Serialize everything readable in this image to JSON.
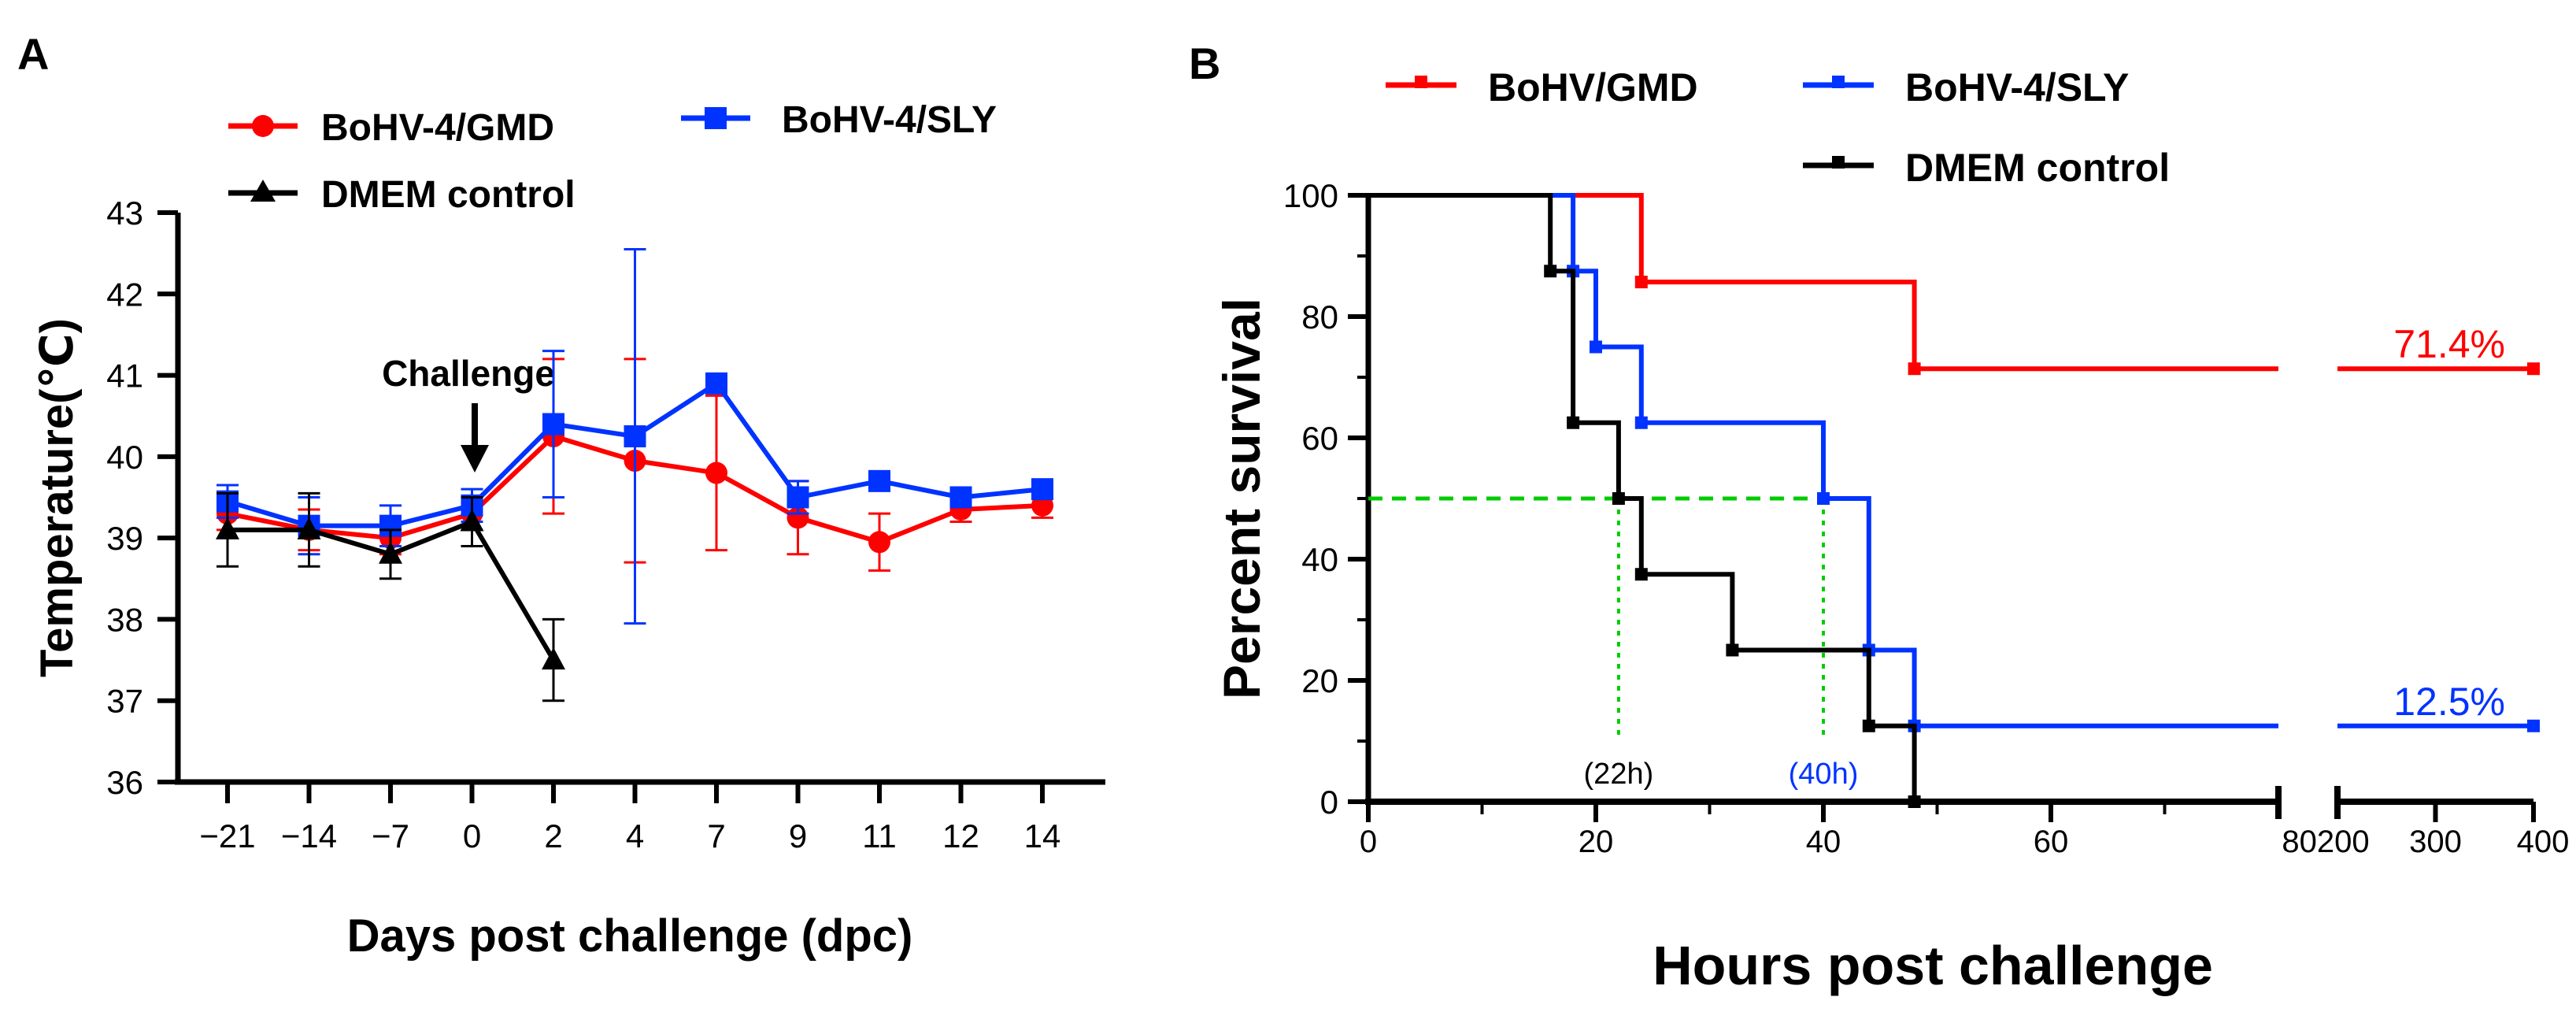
{
  "chart_data": [
    {
      "panel_label": "A",
      "type": "line",
      "title": "",
      "xlabel": "Days post challenge (dpc)",
      "ylabel": "Temperature(℃)",
      "ylim": [
        36,
        43
      ],
      "yticks": [
        "36",
        "37",
        "38",
        "39",
        "40",
        "41",
        "42",
        "43"
      ],
      "categories": [
        "−21",
        "−14",
        "−7",
        "0",
        "2",
        "4",
        "7",
        "9",
        "11",
        "12",
        "14"
      ],
      "annotation": "Challenge",
      "legend_position": "top",
      "series": [
        {
          "name": "BoHV-4/GMD",
          "color": "#ff0000",
          "marker": "circle",
          "values": [
            39.3,
            39.1,
            39.0,
            39.3,
            40.25,
            39.95,
            39.8,
            39.25,
            38.95,
            39.35,
            39.4
          ],
          "err": [
            0.2,
            0.25,
            0.2,
            0.2,
            0.95,
            1.25,
            0.95,
            0.45,
            0.35,
            0.15,
            0.15
          ]
        },
        {
          "name": "BoHV-4/SLY",
          "color": "#0033ff",
          "marker": "square",
          "values": [
            39.45,
            39.15,
            39.15,
            39.4,
            40.4,
            40.25,
            40.9,
            39.5,
            39.7,
            39.5,
            39.6
          ],
          "err": [
            0.2,
            0.35,
            0.25,
            0.2,
            0.9,
            2.3,
            0.1,
            0.2,
            0.1,
            0.1,
            0.1
          ]
        },
        {
          "name": "DMEM control",
          "color": "#000000",
          "marker": "triangle",
          "values": [
            39.1,
            39.1,
            38.8,
            39.2,
            37.5,
            null,
            null,
            null,
            null,
            null,
            null
          ],
          "err": [
            0.45,
            0.45,
            0.3,
            0.3,
            0.5,
            null,
            null,
            null,
            null,
            null,
            null
          ]
        }
      ]
    },
    {
      "panel_label": "B",
      "type": "line",
      "subtype": "kaplan-meier survival",
      "title": "",
      "xlabel": "Hours post challenge",
      "ylabel": "Percent survival",
      "ylim": [
        0,
        100
      ],
      "yticks": [
        "0",
        "20",
        "40",
        "60",
        "80",
        "100"
      ],
      "x_segments": [
        {
          "range": [
            0,
            80
          ],
          "ticks": [
            "0",
            "20",
            "40",
            "60"
          ]
        },
        {
          "range": [
            200,
            400
          ],
          "ticks": [
            "300",
            "400"
          ]
        }
      ],
      "break_tick_label": "80200",
      "legend_position": "top",
      "series": [
        {
          "name": "BoHV/GMD",
          "color": "#ff0000",
          "steps": [
            [
              0,
              100
            ],
            [
              24,
              85.7
            ],
            [
              48,
              71.4
            ],
            [
              400,
              71.4
            ]
          ],
          "censor": [
            [
              24,
              85.7
            ],
            [
              48,
              71.4
            ],
            [
              400,
              71.4
            ]
          ],
          "final_label": "71.4%"
        },
        {
          "name": "BoHV-4/SLY",
          "color": "#0033ff",
          "steps": [
            [
              0,
              100
            ],
            [
              18,
              87.5
            ],
            [
              20,
              75
            ],
            [
              24,
              62.5
            ],
            [
              40,
              50
            ],
            [
              44,
              25
            ],
            [
              48,
              12.5
            ],
            [
              400,
              12.5
            ]
          ],
          "censor": [
            [
              18,
              87.5
            ],
            [
              20,
              75
            ],
            [
              24,
              62.5
            ],
            [
              40,
              50
            ],
            [
              44,
              25
            ],
            [
              48,
              12.5
            ],
            [
              400,
              12.5
            ]
          ],
          "final_label": "12.5%"
        },
        {
          "name": "DMEM control",
          "color": "#000000",
          "steps": [
            [
              0,
              100
            ],
            [
              16,
              87.5
            ],
            [
              18,
              62.5
            ],
            [
              22,
              50
            ],
            [
              24,
              37.5
            ],
            [
              32,
              25
            ],
            [
              44,
              12.5
            ],
            [
              48,
              0
            ]
          ],
          "censor": [
            [
              16,
              87.5
            ],
            [
              18,
              62.5
            ],
            [
              22,
              50
            ],
            [
              24,
              37.5
            ],
            [
              32,
              25
            ],
            [
              44,
              12.5
            ],
            [
              48,
              0
            ]
          ],
          "final_label": ""
        }
      ],
      "median_line_y": 50,
      "median_markers": [
        {
          "x": 22,
          "label": "(22h)",
          "color": "#000000"
        },
        {
          "x": 40,
          "label": "(40h)",
          "color": "#0033ff"
        }
      ],
      "guide_color": "#00cc00"
    }
  ]
}
